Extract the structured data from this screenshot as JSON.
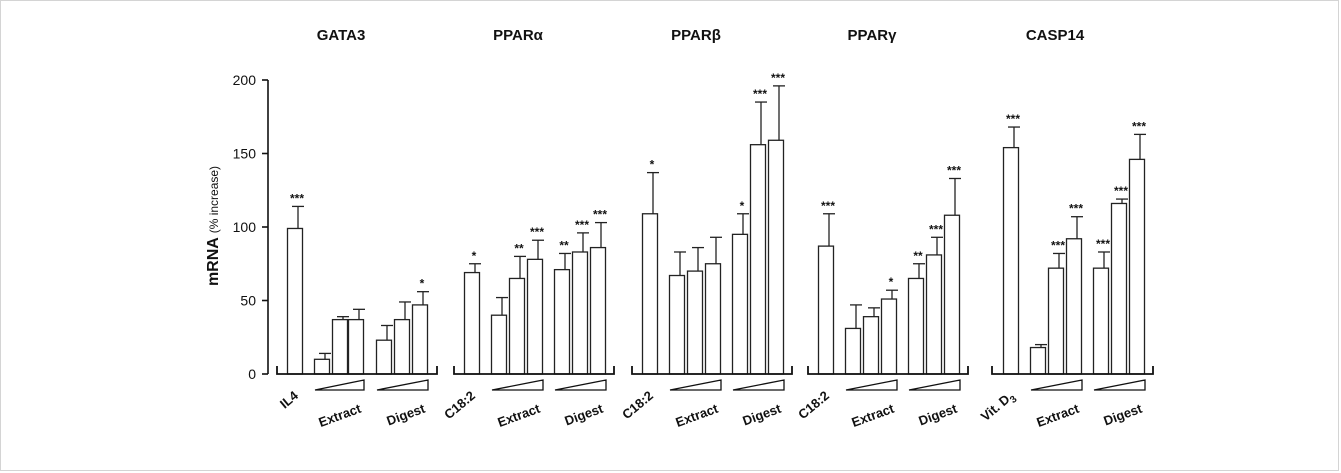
{
  "y_label": {
    "main": "mRNA",
    "unit": "(% increase)"
  },
  "chart_data": {
    "type": "bar",
    "ylabel": "mRNA (% increase)",
    "ylim": [
      0,
      200
    ],
    "yticks": [
      0,
      50,
      100,
      150,
      200
    ],
    "panels": [
      {
        "title": "GATA3",
        "control_label": "IL4",
        "group_labels": [
          "Extract",
          "Digest"
        ],
        "bars": [
          {
            "value": 99,
            "error": 15,
            "sig": "***"
          },
          {
            "value": 10,
            "error": 4,
            "sig": ""
          },
          {
            "value": 37,
            "error": 2,
            "sig": ""
          },
          {
            "value": 37,
            "error": 7,
            "sig": ""
          },
          {
            "value": 23,
            "error": 10,
            "sig": ""
          },
          {
            "value": 37,
            "error": 12,
            "sig": ""
          },
          {
            "value": 47,
            "error": 9,
            "sig": "*"
          }
        ]
      },
      {
        "title": "PPARα",
        "control_label": "C18:2",
        "group_labels": [
          "Extract",
          "Digest"
        ],
        "bars": [
          {
            "value": 69,
            "error": 6,
            "sig": "*"
          },
          {
            "value": 40,
            "error": 12,
            "sig": ""
          },
          {
            "value": 65,
            "error": 15,
            "sig": "**"
          },
          {
            "value": 78,
            "error": 13,
            "sig": "***"
          },
          {
            "value": 71,
            "error": 11,
            "sig": "**"
          },
          {
            "value": 83,
            "error": 13,
            "sig": "***"
          },
          {
            "value": 86,
            "error": 17,
            "sig": "***"
          }
        ]
      },
      {
        "title": "PPARβ",
        "control_label": "C18:2",
        "group_labels": [
          "Extract",
          "Digest"
        ],
        "bars": [
          {
            "value": 109,
            "error": 28,
            "sig": "*"
          },
          {
            "value": 67,
            "error": 16,
            "sig": ""
          },
          {
            "value": 70,
            "error": 16,
            "sig": ""
          },
          {
            "value": 75,
            "error": 18,
            "sig": ""
          },
          {
            "value": 95,
            "error": 14,
            "sig": "*"
          },
          {
            "value": 156,
            "error": 29,
            "sig": "***"
          },
          {
            "value": 159,
            "error": 37,
            "sig": "***"
          }
        ]
      },
      {
        "title": "PPARγ",
        "control_label": "C18:2",
        "group_labels": [
          "Extract",
          "Digest"
        ],
        "bars": [
          {
            "value": 87,
            "error": 22,
            "sig": "***"
          },
          {
            "value": 31,
            "error": 16,
            "sig": ""
          },
          {
            "value": 39,
            "error": 6,
            "sig": ""
          },
          {
            "value": 51,
            "error": 6,
            "sig": "*"
          },
          {
            "value": 65,
            "error": 10,
            "sig": "**"
          },
          {
            "value": 81,
            "error": 12,
            "sig": "***"
          },
          {
            "value": 108,
            "error": 25,
            "sig": "***"
          }
        ]
      },
      {
        "title": "CASP14",
        "control_label": "Vit. D",
        "control_label_sub": "3",
        "group_labels": [
          "Extract",
          "Digest"
        ],
        "bars": [
          {
            "value": 154,
            "error": 14,
            "sig": "***"
          },
          {
            "value": 18,
            "error": 2,
            "sig": ""
          },
          {
            "value": 72,
            "error": 10,
            "sig": "***"
          },
          {
            "value": 92,
            "error": 15,
            "sig": "***"
          },
          {
            "value": 72,
            "error": 11,
            "sig": "***"
          },
          {
            "value": 116,
            "error": 3,
            "sig": "***"
          },
          {
            "value": 146,
            "error": 17,
            "sig": "***"
          }
        ]
      }
    ]
  }
}
